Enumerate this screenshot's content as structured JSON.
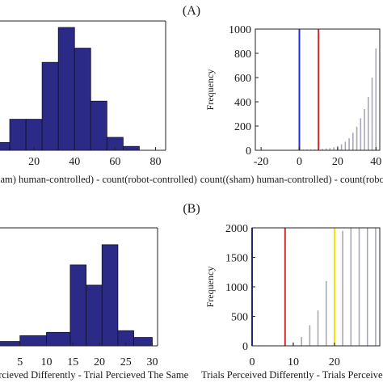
{
  "panel_labels": [
    "(A)",
    "(B)"
  ],
  "chart_data": [
    {
      "id": "A-left",
      "type": "bar",
      "histogram": true,
      "xlabel": "count((sham) human-controlled) - count(robot-controlled)",
      "xlim": [
        0,
        85
      ],
      "ylim": [
        0,
        100
      ],
      "xticks": [
        20,
        40,
        60,
        80
      ],
      "bin_edges": [
        0,
        8,
        16,
        24,
        32,
        40,
        48,
        56,
        64,
        72
      ],
      "values": [
        6,
        24,
        24,
        68,
        95,
        79,
        38,
        10,
        3
      ],
      "bar_color": "#2b2a86"
    },
    {
      "id": "A-right",
      "type": "bar",
      "xlabel": "count((sham) human-controlled) - count(robot-controlled)",
      "ylabel": "Frequency",
      "xlim": [
        -23,
        42
      ],
      "ylim": [
        0,
        1000
      ],
      "xticks": [
        -20,
        0,
        20,
        40
      ],
      "yticks": [
        0,
        200,
        400,
        600,
        800,
        1000
      ],
      "x": [
        -10,
        -8,
        -6,
        -4,
        -2,
        0,
        2,
        4,
        6,
        8,
        10,
        12,
        14,
        16,
        18,
        20,
        22,
        24,
        26,
        28,
        30,
        32,
        34,
        36,
        38,
        40
      ],
      "values": [
        1,
        1,
        2,
        3,
        4,
        5,
        6,
        7,
        8,
        8,
        10,
        12,
        15,
        18,
        25,
        35,
        50,
        70,
        100,
        145,
        195,
        265,
        340,
        440,
        600,
        840
      ],
      "bar_color": "#a8a8b8",
      "reference_lines": [
        {
          "x": 0,
          "color": "#1f2fd8"
        },
        {
          "x": 10,
          "color": "#d62828"
        }
      ]
    },
    {
      "id": "B-left",
      "type": "bar",
      "histogram": true,
      "xlabel": "Trials Percieved Differently - Trial Percieved The Same",
      "xlim": [
        0,
        31
      ],
      "ylim": [
        0,
        35
      ],
      "xticks": [
        5,
        10,
        15,
        20,
        25,
        30
      ],
      "bin_edges": [
        0,
        5,
        10,
        14.5,
        17.5,
        20.5,
        23.5,
        26.5,
        30
      ],
      "values": [
        1.3,
        3,
        4,
        24,
        18,
        30,
        4.5,
        2.5
      ],
      "bar_color": "#2b2a86"
    },
    {
      "id": "B-right",
      "type": "bar",
      "xlabel": "Trials Perceived Differently - Trials Perceived The Same",
      "ylabel": "Frequency",
      "xlim": [
        0,
        31
      ],
      "ylim": [
        0,
        2000
      ],
      "xticks": [
        0,
        10,
        20
      ],
      "yticks": [
        0,
        500,
        1000,
        1500,
        2000
      ],
      "x": [
        10,
        12,
        14,
        16,
        18,
        20,
        22,
        24,
        26,
        28,
        30
      ],
      "values": [
        60,
        150,
        350,
        600,
        1100,
        1600,
        1950,
        2050,
        2100,
        2100,
        2100
      ],
      "bar_color": "#a8a8b8",
      "reference_lines": [
        {
          "x": 0,
          "color": "#1f2fd8"
        },
        {
          "x": 8,
          "color": "#d62828"
        },
        {
          "x": 20,
          "color": "#f2e600"
        }
      ]
    }
  ]
}
